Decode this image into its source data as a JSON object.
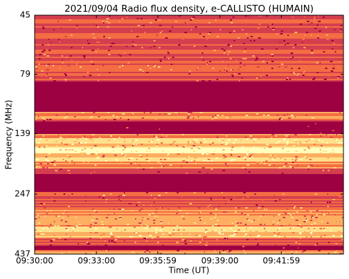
{
  "chart_data": {
    "type": "spectrogram",
    "title": "2021/09/04  Radio flux density, e-CALLISTO (HUMAIN)",
    "x_label": "Time (UT)",
    "y_label": "Frequency (MHz)",
    "xlim": [
      "09:30:00",
      "09:45:00"
    ],
    "xticks": [
      "09:30:00",
      "09:33:00",
      "09:35:59",
      "09:39:00",
      "09:41:59"
    ],
    "ylim": [
      45,
      437
    ],
    "yticks": [
      45,
      79,
      139,
      247,
      437
    ],
    "y_log": true,
    "y_inverted": true,
    "colormap": [
      "#9e0142",
      "#d53e4f",
      "#f46d43",
      "#fdae61",
      "#fee08b",
      "#ffffbf"
    ]
  }
}
